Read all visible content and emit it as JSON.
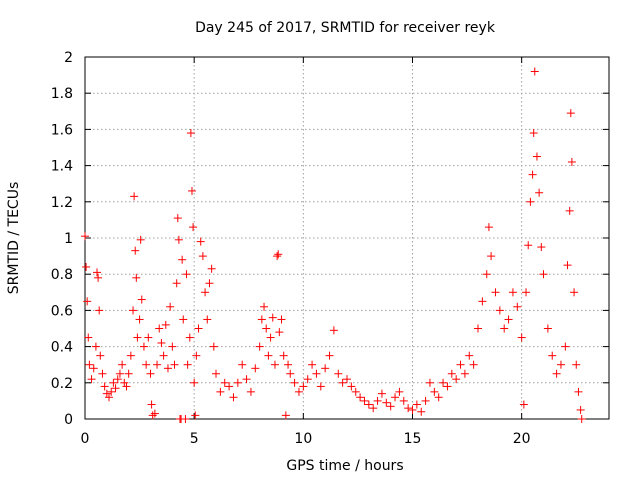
{
  "chart_data": {
    "type": "scatter",
    "title": "Day 245 of 2017, SRMTID for receiver reyk",
    "xlabel": "GPS time / hours",
    "ylabel": "SRMTID / TECUs",
    "xlim": [
      0,
      24
    ],
    "ylim": [
      0,
      2
    ],
    "xticks": [
      0,
      5,
      10,
      15,
      20
    ],
    "xtick_labels": [
      "0",
      "5",
      "10",
      "15",
      "20"
    ],
    "yticks": [
      0,
      0.2,
      0.4,
      0.6,
      0.8,
      1,
      1.2,
      1.4,
      1.6,
      1.8,
      2
    ],
    "ytick_labels": [
      "0",
      "0.2",
      "0.4",
      "0.6",
      "0.8",
      "1",
      "1.2",
      "1.4",
      "1.6",
      "1.8",
      "2"
    ],
    "grid": true,
    "marker": "+",
    "marker_color": "#ff0000",
    "series": [
      {
        "name": "SRMTID",
        "points": [
          [
            0.0,
            1.01
          ],
          [
            0.05,
            0.84
          ],
          [
            0.1,
            0.65
          ],
          [
            0.15,
            0.45
          ],
          [
            0.2,
            0.3
          ],
          [
            0.3,
            0.22
          ],
          [
            0.4,
            0.28
          ],
          [
            0.5,
            0.4
          ],
          [
            0.55,
            0.81
          ],
          [
            0.6,
            0.78
          ],
          [
            0.65,
            0.6
          ],
          [
            0.7,
            0.35
          ],
          [
            0.8,
            0.25
          ],
          [
            0.9,
            0.18
          ],
          [
            1.0,
            0.14
          ],
          [
            1.1,
            0.12
          ],
          [
            1.2,
            0.15
          ],
          [
            1.3,
            0.2
          ],
          [
            1.4,
            0.17
          ],
          [
            1.5,
            0.22
          ],
          [
            1.6,
            0.25
          ],
          [
            1.7,
            0.3
          ],
          [
            1.8,
            0.2
          ],
          [
            1.9,
            0.18
          ],
          [
            2.0,
            0.25
          ],
          [
            2.1,
            0.35
          ],
          [
            2.2,
            0.6
          ],
          [
            2.25,
            1.23
          ],
          [
            2.3,
            0.93
          ],
          [
            2.35,
            0.78
          ],
          [
            2.4,
            0.45
          ],
          [
            2.5,
            0.55
          ],
          [
            2.55,
            0.99
          ],
          [
            2.6,
            0.66
          ],
          [
            2.7,
            0.4
          ],
          [
            2.8,
            0.3
          ],
          [
            2.9,
            0.45
          ],
          [
            3.0,
            0.25
          ],
          [
            3.05,
            0.08
          ],
          [
            3.1,
            0.02
          ],
          [
            3.2,
            0.03
          ],
          [
            3.3,
            0.3
          ],
          [
            3.4,
            0.5
          ],
          [
            3.5,
            0.42
          ],
          [
            3.6,
            0.35
          ],
          [
            3.7,
            0.52
          ],
          [
            3.8,
            0.28
          ],
          [
            3.9,
            0.62
          ],
          [
            4.0,
            0.4
          ],
          [
            4.1,
            0.3
          ],
          [
            4.2,
            0.75
          ],
          [
            4.25,
            1.11
          ],
          [
            4.3,
            0.99
          ],
          [
            4.35,
            0.0
          ],
          [
            4.4,
            0.0
          ],
          [
            4.45,
            0.88
          ],
          [
            4.5,
            0.55
          ],
          [
            4.6,
            0.0
          ],
          [
            4.65,
            0.8
          ],
          [
            4.7,
            0.3
          ],
          [
            4.8,
            0.45
          ],
          [
            4.85,
            1.58
          ],
          [
            4.9,
            1.26
          ],
          [
            4.95,
            1.06
          ],
          [
            5.0,
            0.2
          ],
          [
            5.05,
            0.02
          ],
          [
            5.1,
            0.35
          ],
          [
            5.2,
            0.5
          ],
          [
            5.3,
            0.98
          ],
          [
            5.4,
            0.9
          ],
          [
            5.5,
            0.7
          ],
          [
            5.6,
            0.55
          ],
          [
            5.7,
            0.75
          ],
          [
            5.8,
            0.83
          ],
          [
            5.9,
            0.4
          ],
          [
            6.0,
            0.25
          ],
          [
            6.2,
            0.15
          ],
          [
            6.4,
            0.2
          ],
          [
            6.6,
            0.18
          ],
          [
            6.8,
            0.12
          ],
          [
            7.0,
            0.2
          ],
          [
            7.2,
            0.3
          ],
          [
            7.4,
            0.22
          ],
          [
            7.6,
            0.15
          ],
          [
            7.8,
            0.28
          ],
          [
            8.0,
            0.4
          ],
          [
            8.1,
            0.55
          ],
          [
            8.2,
            0.62
          ],
          [
            8.3,
            0.5
          ],
          [
            8.4,
            0.35
          ],
          [
            8.5,
            0.45
          ],
          [
            8.6,
            0.56
          ],
          [
            8.7,
            0.3
          ],
          [
            8.8,
            0.9
          ],
          [
            8.85,
            0.91
          ],
          [
            8.9,
            0.48
          ],
          [
            9.0,
            0.55
          ],
          [
            9.1,
            0.35
          ],
          [
            9.2,
            0.02
          ],
          [
            9.3,
            0.3
          ],
          [
            9.4,
            0.25
          ],
          [
            9.6,
            0.2
          ],
          [
            9.8,
            0.15
          ],
          [
            10.0,
            0.18
          ],
          [
            10.2,
            0.22
          ],
          [
            10.4,
            0.3
          ],
          [
            10.6,
            0.25
          ],
          [
            10.8,
            0.18
          ],
          [
            11.0,
            0.28
          ],
          [
            11.2,
            0.35
          ],
          [
            11.4,
            0.49
          ],
          [
            11.6,
            0.25
          ],
          [
            11.8,
            0.2
          ],
          [
            12.0,
            0.22
          ],
          [
            12.2,
            0.18
          ],
          [
            12.4,
            0.15
          ],
          [
            12.6,
            0.12
          ],
          [
            12.8,
            0.1
          ],
          [
            13.0,
            0.08
          ],
          [
            13.2,
            0.06
          ],
          [
            13.4,
            0.1
          ],
          [
            13.6,
            0.14
          ],
          [
            13.8,
            0.09
          ],
          [
            14.0,
            0.07
          ],
          [
            14.2,
            0.12
          ],
          [
            14.4,
            0.15
          ],
          [
            14.6,
            0.1
          ],
          [
            14.8,
            0.06
          ],
          [
            15.0,
            0.05
          ],
          [
            15.2,
            0.08
          ],
          [
            15.4,
            0.04
          ],
          [
            15.6,
            0.1
          ],
          [
            15.8,
            0.2
          ],
          [
            16.0,
            0.15
          ],
          [
            16.2,
            0.12
          ],
          [
            16.4,
            0.2
          ],
          [
            16.6,
            0.18
          ],
          [
            16.8,
            0.25
          ],
          [
            17.0,
            0.22
          ],
          [
            17.2,
            0.3
          ],
          [
            17.4,
            0.25
          ],
          [
            17.6,
            0.35
          ],
          [
            17.8,
            0.3
          ],
          [
            18.0,
            0.5
          ],
          [
            18.2,
            0.65
          ],
          [
            18.4,
            0.8
          ],
          [
            18.5,
            1.06
          ],
          [
            18.6,
            0.9
          ],
          [
            18.8,
            0.7
          ],
          [
            19.0,
            0.6
          ],
          [
            19.2,
            0.5
          ],
          [
            19.4,
            0.55
          ],
          [
            19.6,
            0.7
          ],
          [
            19.8,
            0.62
          ],
          [
            20.0,
            0.45
          ],
          [
            20.1,
            0.08
          ],
          [
            20.2,
            0.7
          ],
          [
            20.3,
            0.96
          ],
          [
            20.4,
            1.2
          ],
          [
            20.5,
            1.35
          ],
          [
            20.55,
            1.58
          ],
          [
            20.6,
            1.92
          ],
          [
            20.7,
            1.45
          ],
          [
            20.8,
            1.25
          ],
          [
            20.9,
            0.95
          ],
          [
            21.0,
            0.8
          ],
          [
            21.2,
            0.5
          ],
          [
            21.4,
            0.35
          ],
          [
            21.6,
            0.25
          ],
          [
            21.8,
            0.3
          ],
          [
            22.0,
            0.4
          ],
          [
            22.1,
            0.85
          ],
          [
            22.2,
            1.15
          ],
          [
            22.25,
            1.69
          ],
          [
            22.3,
            1.42
          ],
          [
            22.4,
            0.7
          ],
          [
            22.5,
            0.3
          ],
          [
            22.6,
            0.15
          ],
          [
            22.7,
            0.05
          ],
          [
            22.75,
            0.0
          ]
        ]
      }
    ]
  }
}
